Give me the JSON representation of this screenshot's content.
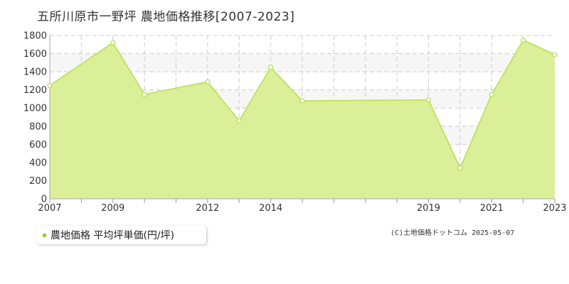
{
  "title": "五所川原市一野坪 農地価格推移[2007-2023]",
  "legend": {
    "label": "農地価格 平均坪単価(円/坪)"
  },
  "copyright": "(C)土地価格ドットコム 2025-05-07",
  "colors": {
    "fill": "#dbee98",
    "line": "#b5e04e",
    "marker_fill": "#ffffff",
    "swatch": "#9acd32"
  },
  "chart_data": {
    "type": "area",
    "title": "五所川原市一野坪 農地価格推移[2007-2023]",
    "xlabel": "",
    "ylabel": "",
    "x": [
      2007,
      2009,
      2010,
      2012,
      2013,
      2014,
      2015,
      2019,
      2020,
      2021,
      2022,
      2023
    ],
    "series": [
      {
        "name": "農地価格 平均坪単価(円/坪)",
        "values": [
          1250,
          1720,
          1150,
          1290,
          860,
          1450,
          1080,
          1090,
          340,
          1150,
          1750,
          1590
        ]
      }
    ],
    "x_tick_labels": [
      "2007",
      "2009",
      "2012",
      "2014",
      "2019",
      "2021",
      "2023"
    ],
    "y_ticks": [
      0,
      200,
      400,
      600,
      800,
      1000,
      1200,
      1400,
      1600,
      1800
    ],
    "ylim": [
      0,
      1800
    ],
    "grid": true,
    "legend_position": "bottom-left"
  }
}
